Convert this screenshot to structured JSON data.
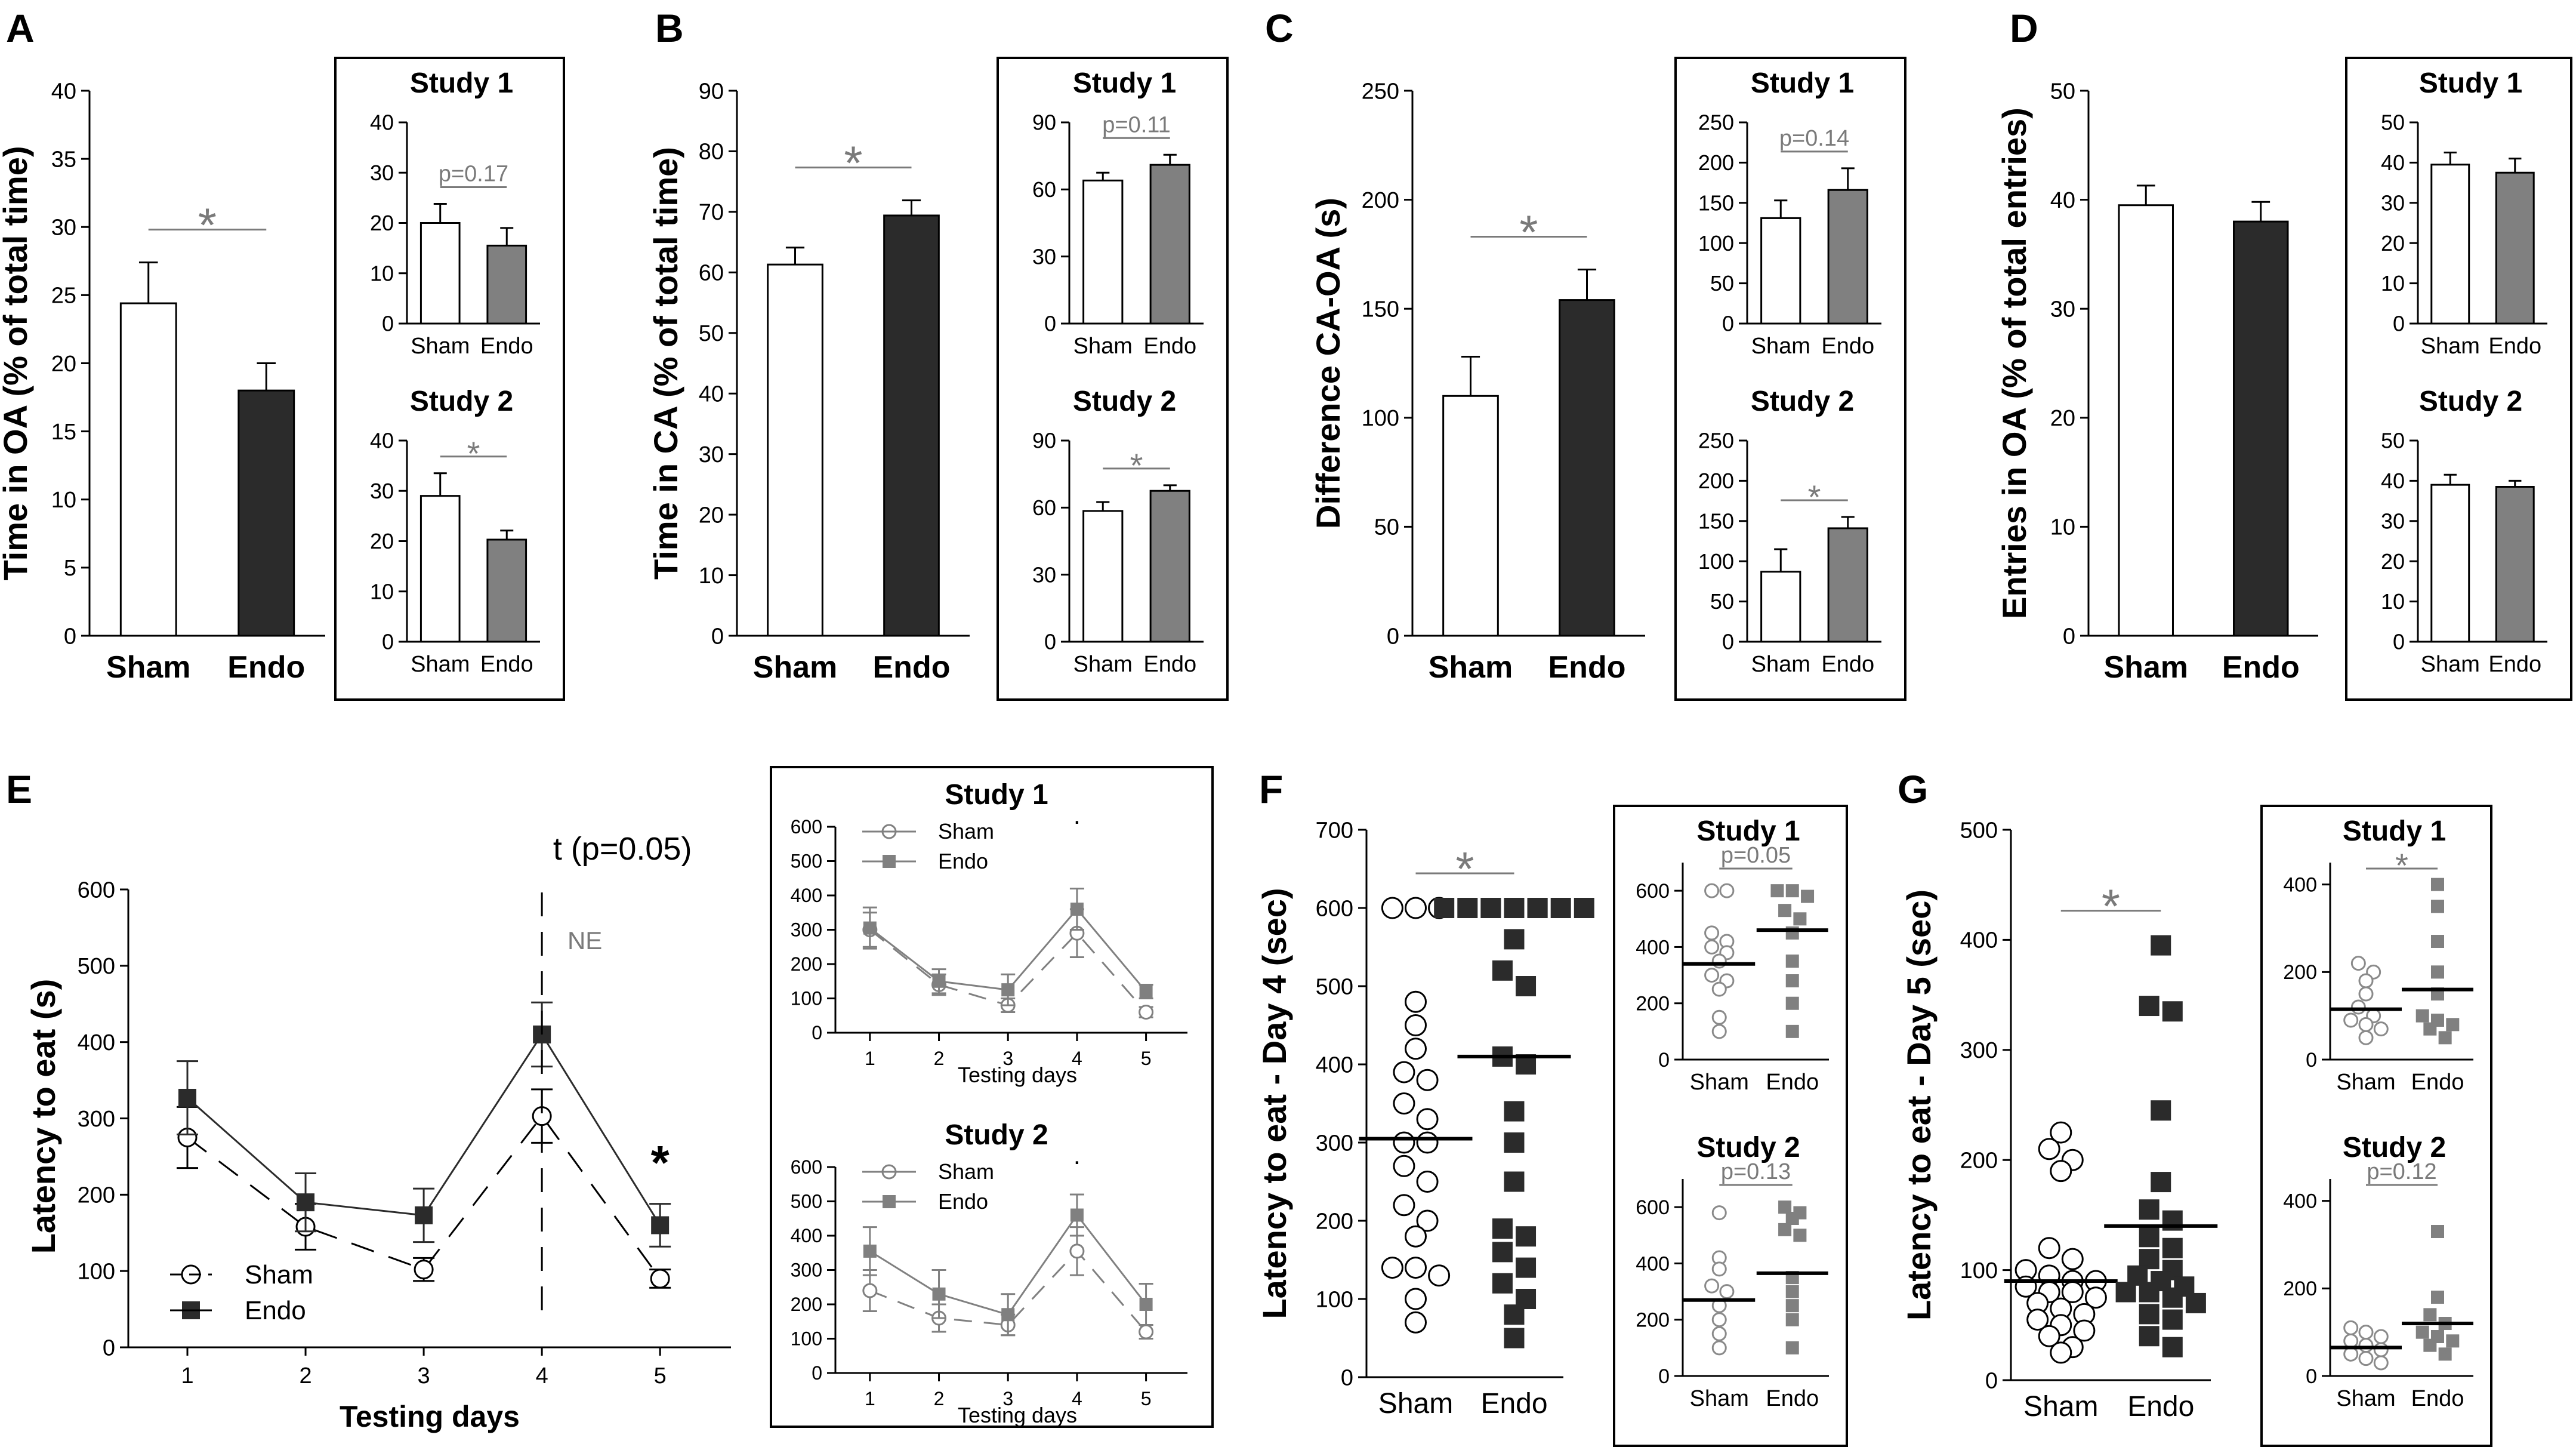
{
  "figure": {
    "palette": {
      "sham": "#ffffff",
      "endo": "#2b2b2b",
      "inset_endo": "#808080",
      "sig": "#7a7a7a",
      "axis": "#000000"
    }
  },
  "chart_data": [
    {
      "id": "A",
      "type": "bar",
      "panel_label": "A",
      "ylabel": "Time in OA (% of total time)",
      "categories": [
        "Sham",
        "Endo"
      ],
      "values": [
        24.4,
        18
      ],
      "errors": [
        3,
        2
      ],
      "ylim": [
        0,
        40
      ],
      "ticks": [
        0,
        5,
        10,
        15,
        20,
        25,
        30,
        35,
        40
      ],
      "significance": "*",
      "insets": [
        {
          "title": "Study 1",
          "categories": [
            "Sham",
            "Endo"
          ],
          "values": [
            20,
            15.5
          ],
          "errors": [
            3.8,
            3.5
          ],
          "ylim": [
            0,
            40
          ],
          "ticks": [
            0,
            10,
            20,
            30,
            40
          ],
          "annotation": "p=0.17"
        },
        {
          "title": "Study 2",
          "categories": [
            "Sham",
            "Endo"
          ],
          "values": [
            29,
            20.3
          ],
          "errors": [
            4.5,
            1.8
          ],
          "ylim": [
            0,
            40
          ],
          "ticks": [
            0,
            10,
            20,
            30,
            40
          ],
          "annotation": "*"
        }
      ]
    },
    {
      "id": "B",
      "type": "bar",
      "panel_label": "B",
      "ylabel": "Time in CA (% of total time)",
      "categories": [
        "Sham",
        "Endo"
      ],
      "values": [
        61.3,
        69.4
      ],
      "errors": [
        2.8,
        2.5
      ],
      "ylim": [
        0,
        90
      ],
      "ticks": [
        0,
        10,
        20,
        30,
        40,
        50,
        60,
        70,
        80,
        90
      ],
      "significance": "*",
      "insets": [
        {
          "title": "Study 1",
          "categories": [
            "Sham",
            "Endo"
          ],
          "values": [
            64,
            71
          ],
          "errors": [
            3.5,
            4.5
          ],
          "ylim": [
            0,
            90
          ],
          "ticks": [
            0,
            30,
            60,
            90
          ],
          "annotation": "p=0.11"
        },
        {
          "title": "Study 2",
          "categories": [
            "Sham",
            "Endo"
          ],
          "values": [
            58.5,
            67.5
          ],
          "errors": [
            4,
            2.5
          ],
          "ylim": [
            0,
            90
          ],
          "ticks": [
            0,
            30,
            60,
            90
          ],
          "annotation": "*"
        }
      ]
    },
    {
      "id": "C",
      "type": "bar",
      "panel_label": "C",
      "ylabel": "Difference CA-OA (s)",
      "categories": [
        "Sham",
        "Endo"
      ],
      "values": [
        110,
        154
      ],
      "errors": [
        18,
        14
      ],
      "ylim": [
        0,
        250
      ],
      "ticks": [
        0,
        50,
        100,
        150,
        200,
        250
      ],
      "significance": "*",
      "insets": [
        {
          "title": "Study 1",
          "categories": [
            "Sham",
            "Endo"
          ],
          "values": [
            131,
            166
          ],
          "errors": [
            22,
            27
          ],
          "ylim": [
            0,
            250
          ],
          "ticks": [
            0,
            50,
            100,
            150,
            200,
            250
          ],
          "annotation": "p=0.14"
        },
        {
          "title": "Study 2",
          "categories": [
            "Sham",
            "Endo"
          ],
          "values": [
            87,
            141
          ],
          "errors": [
            28,
            14
          ],
          "ylim": [
            0,
            250
          ],
          "ticks": [
            0,
            50,
            100,
            150,
            200,
            250
          ],
          "annotation": "*"
        }
      ]
    },
    {
      "id": "D",
      "type": "bar",
      "panel_label": "D",
      "ylabel": "Entries in OA (% of total entries)",
      "categories": [
        "Sham",
        "Endo"
      ],
      "values": [
        39.5,
        38
      ],
      "errors": [
        1.8,
        1.8
      ],
      "ylim": [
        0,
        50
      ],
      "ticks": [
        0,
        10,
        20,
        30,
        40,
        50
      ],
      "significance": "",
      "insets": [
        {
          "title": "Study 1",
          "categories": [
            "Sham",
            "Endo"
          ],
          "values": [
            39.5,
            37.5
          ],
          "errors": [
            3,
            3.5
          ],
          "ylim": [
            0,
            50
          ],
          "ticks": [
            0,
            10,
            20,
            30,
            40,
            50
          ],
          "annotation": ""
        },
        {
          "title": "Study 2",
          "categories": [
            "Sham",
            "Endo"
          ],
          "values": [
            39,
            38.5
          ],
          "errors": [
            2.5,
            1.5
          ],
          "ylim": [
            0,
            50
          ],
          "ticks": [
            0,
            10,
            20,
            30,
            40,
            50
          ],
          "annotation": ""
        }
      ]
    },
    {
      "id": "E",
      "type": "line",
      "panel_label": "E",
      "ylabel": "Latency to eat (s)",
      "xlabel": "Testing days",
      "x": [
        1,
        2,
        3,
        4,
        5
      ],
      "ylim": [
        0,
        600
      ],
      "ticks": [
        0,
        100,
        200,
        300,
        400,
        500,
        600
      ],
      "series": [
        {
          "name": "Sham",
          "values": [
            275,
            158,
            102,
            303,
            90
          ],
          "errors": [
            40,
            30,
            15,
            35,
            12
          ]
        },
        {
          "name": "Endo",
          "values": [
            327,
            190,
            173,
            410,
            160
          ],
          "errors": [
            48,
            38,
            35,
            42,
            28
          ]
        }
      ],
      "annotations": {
        "trend": "t (p=0.05)",
        "ne": "NE",
        "sig_day5": "*"
      },
      "insets": [
        {
          "title": "Study 1",
          "xlabel": "Testing days",
          "x": [
            1,
            2,
            3,
            4,
            5
          ],
          "ylim": [
            0,
            600
          ],
          "ticks": [
            0,
            100,
            200,
            300,
            400,
            500,
            600
          ],
          "mark": ".",
          "series": [
            {
              "name": "Sham",
              "values": [
                300,
                140,
                80,
                290,
                60
              ],
              "errors": [
                50,
                30,
                20,
                70,
                15
              ]
            },
            {
              "name": "Endo",
              "values": [
                305,
                150,
                125,
                360,
                120
              ],
              "errors": [
                60,
                35,
                45,
                60,
                20
              ]
            }
          ]
        },
        {
          "title": "Study 2",
          "xlabel": "Testing days",
          "x": [
            1,
            2,
            3,
            4,
            5
          ],
          "ylim": [
            0,
            600
          ],
          "ticks": [
            0,
            100,
            200,
            300,
            400,
            500,
            600
          ],
          "mark": ".",
          "series": [
            {
              "name": "Sham",
              "values": [
                240,
                160,
                140,
                355,
                120
              ],
              "errors": [
                60,
                40,
                30,
                70,
                20
              ]
            },
            {
              "name": "Endo",
              "values": [
                355,
                230,
                170,
                460,
                200
              ],
              "errors": [
                70,
                70,
                60,
                60,
                60
              ]
            }
          ]
        }
      ]
    },
    {
      "id": "F",
      "type": "scatter",
      "panel_label": "F",
      "ylabel": "Latency to eat - Day 4 (sec)",
      "categories": [
        "Sham",
        "Endo"
      ],
      "ylim": [
        0,
        700
      ],
      "ticks": [
        0,
        100,
        200,
        300,
        400,
        500,
        600,
        700
      ],
      "significance": "*",
      "means": [
        305,
        410
      ],
      "points": [
        [
          600,
          600,
          600,
          480,
          450,
          420,
          390,
          380,
          350,
          330,
          300,
          300,
          270,
          250,
          220,
          200,
          180,
          140,
          140,
          130,
          100,
          70
        ],
        [
          600,
          600,
          600,
          600,
          600,
          600,
          600,
          600,
          600,
          600,
          560,
          520,
          500,
          410,
          400,
          340,
          300,
          250,
          190,
          180,
          160,
          140,
          120,
          100,
          80,
          50
        ]
      ],
      "insets": [
        {
          "title": "Study 1",
          "categories": [
            "Sham",
            "Endo"
          ],
          "ylim": [
            0,
            700
          ],
          "ticks": [
            0,
            200,
            400,
            600
          ],
          "annotation": "p=0.05",
          "means": [
            340,
            460
          ],
          "points": [
            [
              600,
              600,
              450,
              420,
              400,
              380,
              350,
              300,
              280,
              250,
              150,
              100
            ],
            [
              600,
              600,
              580,
              530,
              500,
              450,
              350,
              280,
              200,
              100
            ]
          ]
        },
        {
          "title": "Study 2",
          "categories": [
            "Sham",
            "Endo"
          ],
          "ylim": [
            0,
            700
          ],
          "ticks": [
            0,
            200,
            400,
            600
          ],
          "annotation": "p=0.13",
          "means": [
            270,
            365
          ],
          "points": [
            [
              580,
              420,
              380,
              320,
              300,
              250,
              200,
              150,
              100
            ],
            [
              600,
              580,
              560,
              520,
              500,
              350,
              300,
              250,
              200,
              100
            ]
          ]
        }
      ]
    },
    {
      "id": "G",
      "type": "scatter",
      "panel_label": "G",
      "ylabel": "Latency to eat - Day 5 (sec)",
      "categories": [
        "Sham",
        "Endo"
      ],
      "ylim": [
        0,
        500
      ],
      "ticks": [
        0,
        100,
        200,
        300,
        400,
        500
      ],
      "significance": "*",
      "means": [
        90,
        140
      ],
      "points": [
        [
          225,
          210,
          200,
          190,
          120,
          110,
          100,
          95,
          90,
          90,
          85,
          80,
          80,
          75,
          70,
          65,
          60,
          55,
          50,
          45,
          40,
          30,
          25
        ],
        [
          395,
          340,
          335,
          245,
          180,
          155,
          145,
          130,
          120,
          110,
          100,
          95,
          90,
          85,
          80,
          80,
          75,
          70,
          60,
          55,
          40,
          30
        ]
      ],
      "insets": [
        {
          "title": "Study 1",
          "categories": [
            "Sham",
            "Endo"
          ],
          "ylim": [
            0,
            450
          ],
          "ticks": [
            0,
            200,
            400
          ],
          "annotation": "*",
          "means": [
            115,
            160
          ],
          "points": [
            [
              220,
              200,
              180,
              150,
              120,
              100,
              90,
              80,
              70,
              50
            ],
            [
              400,
              350,
              270,
              200,
              150,
              100,
              90,
              80,
              70,
              50
            ]
          ]
        },
        {
          "title": "Study 2",
          "categories": [
            "Sham",
            "Endo"
          ],
          "ylim": [
            0,
            450
          ],
          "ticks": [
            0,
            200,
            400
          ],
          "annotation": "p=0.12",
          "means": [
            65,
            120
          ],
          "points": [
            [
              110,
              100,
              90,
              80,
              70,
              60,
              50,
              40,
              30
            ],
            [
              330,
              180,
              140,
              120,
              100,
              90,
              80,
              70,
              50
            ]
          ]
        }
      ]
    }
  ]
}
